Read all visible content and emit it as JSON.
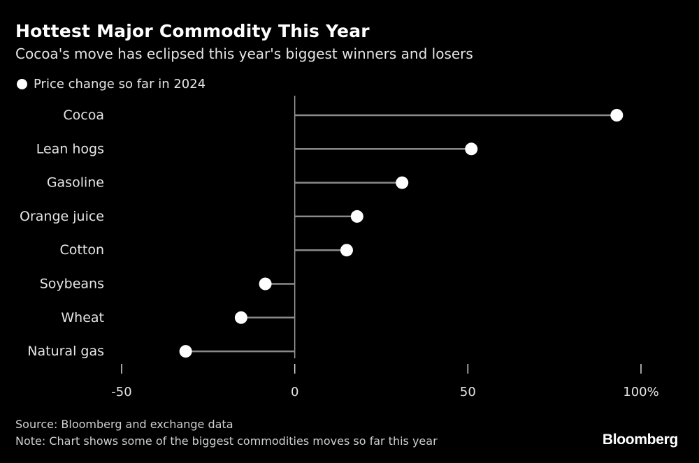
{
  "chart_data": {
    "type": "dot",
    "title": "Hottest Major Commodity This Year",
    "subtitle": "Cocoa's move has eclipsed this year's biggest winners and losers",
    "legend": "Price change so far in 2024",
    "categories": [
      "Cocoa",
      "Lean hogs",
      "Gasoline",
      "Orange juice",
      "Cotton",
      "Soybeans",
      "Wheat",
      "Natural gas"
    ],
    "series": [
      {
        "name": "Price change so far in 2024",
        "values": [
          93,
          51,
          31,
          18,
          15,
          -8.5,
          -15.5,
          -31.5
        ]
      }
    ],
    "xlim": [
      -50,
      100
    ],
    "xticks": [
      -50,
      0,
      50,
      100
    ],
    "xtick_labels": [
      "-50",
      "0",
      "50",
      "100%"
    ],
    "xlabel": "",
    "ylabel": ""
  },
  "footer": {
    "source": "Source: Bloomberg and exchange data",
    "note": "Note: Chart shows some of the biggest commodities moves so far this year"
  },
  "brand": "Bloomberg",
  "colors": {
    "background": "#000000",
    "dot": "#ffffff",
    "stem": "#8a8a8a",
    "axis": "#9a9a9a"
  }
}
